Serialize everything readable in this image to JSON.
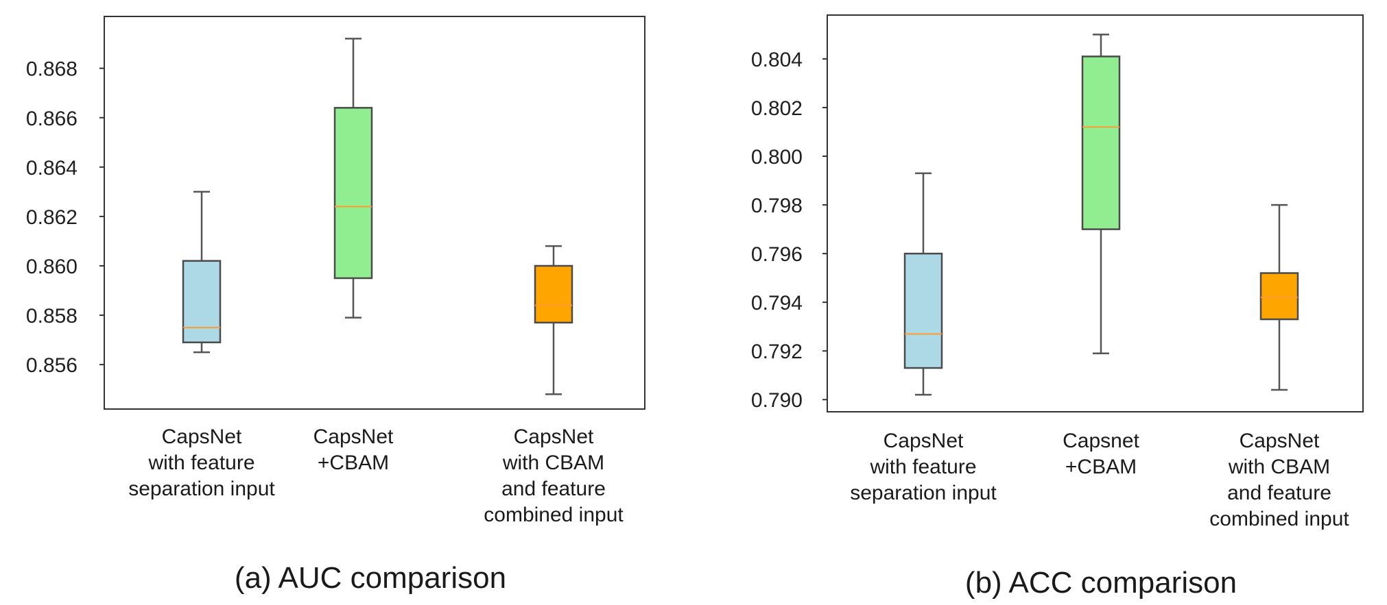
{
  "chart_data": [
    {
      "type": "boxplot",
      "caption": "(a)    AUC   comparison",
      "ylim": [
        0.8542,
        0.8701
      ],
      "yticks": [
        "0.856",
        "0.858",
        "0.860",
        "0.862",
        "0.864",
        "0.866",
        "0.868"
      ],
      "categories": [
        [
          "CapsNet",
          "with   feature",
          "separation   input"
        ],
        [
          "CapsNet",
          "+CBAM"
        ],
        [
          "CapsNet",
          "with   CBAM",
          "and   feature",
          "combined   input"
        ]
      ],
      "boxes": [
        {
          "whisker_low": 0.8565,
          "q1": 0.8569,
          "median": 0.8575,
          "q3": 0.8602,
          "whisker_high": 0.863,
          "color": "#add8e6"
        },
        {
          "whisker_low": 0.8579,
          "q1": 0.8595,
          "median": 0.8624,
          "q3": 0.8664,
          "whisker_high": 0.8692,
          "color": "#90ee90"
        },
        {
          "whisker_low": 0.8548,
          "q1": 0.8577,
          "median": 0.8584,
          "q3": 0.86,
          "whisker_high": 0.8608,
          "color": "#ffa500"
        }
      ],
      "median_color": "#ff9933"
    },
    {
      "type": "boxplot",
      "caption": "(b)   ACC   comparison",
      "ylim": [
        0.7895,
        0.8058
      ],
      "yticks": [
        "0.790",
        "0.792",
        "0.794",
        "0.796",
        "0.798",
        "0.800",
        "0.802",
        "0.804"
      ],
      "categories": [
        [
          "CapsNet",
          "with   feature",
          "separation   input"
        ],
        [
          "Capsnet",
          "+CBAM"
        ],
        [
          "CapsNet",
          "with   CBAM",
          "and   feature",
          "combined   input"
        ]
      ],
      "boxes": [
        {
          "whisker_low": 0.7902,
          "q1": 0.7913,
          "median": 0.7927,
          "q3": 0.796,
          "whisker_high": 0.7993,
          "color": "#add8e6"
        },
        {
          "whisker_low": 0.7919,
          "q1": 0.797,
          "median": 0.8012,
          "q3": 0.8041,
          "whisker_high": 0.805,
          "color": "#90ee90"
        },
        {
          "whisker_low": 0.7904,
          "q1": 0.7933,
          "median": 0.7942,
          "q3": 0.7952,
          "whisker_high": 0.798,
          "color": "#ffa500"
        }
      ],
      "median_color": "#ff9933"
    }
  ]
}
